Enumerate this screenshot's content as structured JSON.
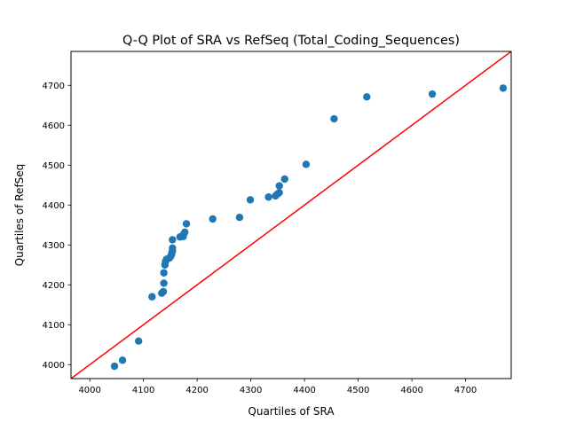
{
  "chart_data": {
    "type": "scatter",
    "title": "Q-Q Plot of SRA vs RefSeq (Total_Coding_Sequences)",
    "xlabel": "Quartiles of SRA",
    "ylabel": "Quartiles of RefSeq",
    "xlim": [
      3965,
      4785
    ],
    "ylim": [
      3965,
      4785
    ],
    "xticks": [
      4000,
      4100,
      4200,
      4300,
      4400,
      4500,
      4600,
      4700
    ],
    "yticks": [
      4000,
      4100,
      4200,
      4300,
      4400,
      4500,
      4600,
      4700
    ],
    "grid": false,
    "legend": "none",
    "colors": {
      "points": "#1f77b4",
      "reference_line": "#ff0000"
    },
    "reference_line": {
      "x": [
        3965,
        4785
      ],
      "y": [
        3965,
        4785
      ]
    },
    "points": [
      {
        "x": 4046,
        "y": 3996
      },
      {
        "x": 4061,
        "y": 4011
      },
      {
        "x": 4091,
        "y": 4059
      },
      {
        "x": 4116,
        "y": 4170
      },
      {
        "x": 4134,
        "y": 4179
      },
      {
        "x": 4137,
        "y": 4183
      },
      {
        "x": 4138,
        "y": 4204
      },
      {
        "x": 4138,
        "y": 4230
      },
      {
        "x": 4140,
        "y": 4250
      },
      {
        "x": 4141,
        "y": 4258
      },
      {
        "x": 4143,
        "y": 4264
      },
      {
        "x": 4148,
        "y": 4267
      },
      {
        "x": 4150,
        "y": 4270
      },
      {
        "x": 4152,
        "y": 4275
      },
      {
        "x": 4153,
        "y": 4281
      },
      {
        "x": 4154,
        "y": 4285
      },
      {
        "x": 4154,
        "y": 4292
      },
      {
        "x": 4154,
        "y": 4313
      },
      {
        "x": 4168,
        "y": 4320
      },
      {
        "x": 4174,
        "y": 4321
      },
      {
        "x": 4175,
        "y": 4327
      },
      {
        "x": 4177,
        "y": 4332
      },
      {
        "x": 4180,
        "y": 4353
      },
      {
        "x": 4229,
        "y": 4365
      },
      {
        "x": 4279,
        "y": 4369
      },
      {
        "x": 4299,
        "y": 4413
      },
      {
        "x": 4333,
        "y": 4420
      },
      {
        "x": 4346,
        "y": 4423
      },
      {
        "x": 4350,
        "y": 4428
      },
      {
        "x": 4353,
        "y": 4431
      },
      {
        "x": 4353,
        "y": 4448
      },
      {
        "x": 4363,
        "y": 4465
      },
      {
        "x": 4403,
        "y": 4502
      },
      {
        "x": 4455,
        "y": 4616
      },
      {
        "x": 4516,
        "y": 4671
      },
      {
        "x": 4638,
        "y": 4678
      },
      {
        "x": 4770,
        "y": 4693
      }
    ]
  }
}
